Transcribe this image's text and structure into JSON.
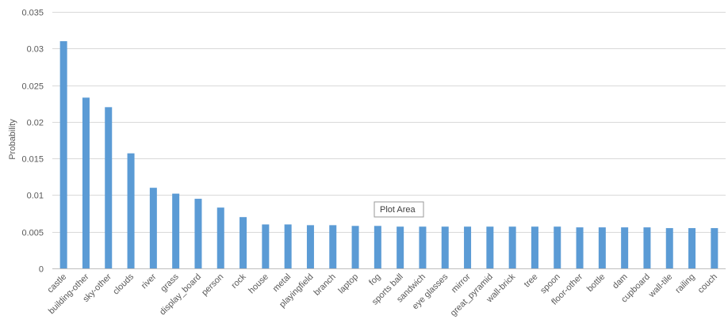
{
  "chart_data": {
    "type": "bar",
    "title": "",
    "xlabel": "",
    "ylabel": "Probability",
    "ylim": [
      0,
      0.035
    ],
    "yticks": [
      "0",
      "0.005",
      "0.01",
      "0.015",
      "0.02",
      "0.025",
      "0.03",
      "0.035"
    ],
    "grid": true,
    "bar_color": "#5b9bd5",
    "categories": [
      "castle",
      "building-other",
      "sky-other",
      "clouds",
      "river",
      "grass",
      "display_board",
      "person",
      "rock",
      "house",
      "metal",
      "playingfield",
      "branch",
      "laptop",
      "fog",
      "sports ball",
      "sandwich",
      "eye glasses",
      "mirror",
      "great_pyramid",
      "wall-brick",
      "tree",
      "spoon",
      "floor-other",
      "bottle",
      "dam",
      "cupboard",
      "wall-tile",
      "railing",
      "couch"
    ],
    "values": [
      0.031,
      0.0233,
      0.022,
      0.0157,
      0.011,
      0.0102,
      0.0095,
      0.0083,
      0.007,
      0.006,
      0.006,
      0.0059,
      0.0059,
      0.0058,
      0.0058,
      0.0057,
      0.0057,
      0.0057,
      0.0057,
      0.0057,
      0.0057,
      0.0057,
      0.0057,
      0.0056,
      0.0056,
      0.0056,
      0.0056,
      0.0055,
      0.0055,
      0.0055
    ]
  },
  "tooltip": {
    "text": "Plot Area"
  }
}
